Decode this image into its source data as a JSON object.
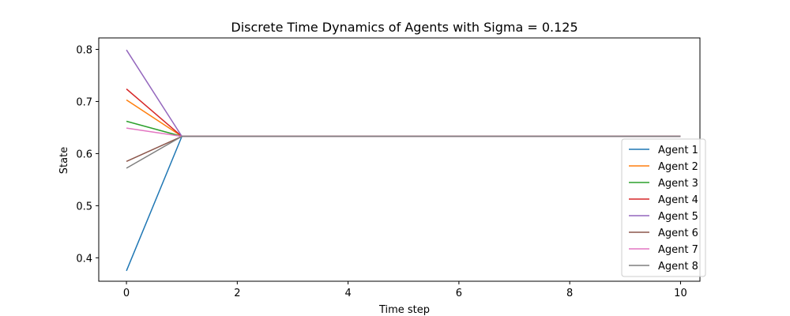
{
  "chart_data": {
    "type": "line",
    "title": "Discrete Time Dynamics of Agents with Sigma = 0.125",
    "xlabel": "Time step",
    "ylabel": "State",
    "xlim": [
      -0.5,
      10.35
    ],
    "ylim": [
      0.355,
      0.822
    ],
    "xticks": [
      0,
      2,
      4,
      6,
      8,
      10
    ],
    "yticks": [
      0.4,
      0.5,
      0.6,
      0.7,
      0.8
    ],
    "xtick_labels": [
      "0",
      "2",
      "4",
      "6",
      "8",
      "10"
    ],
    "ytick_labels": [
      "0.4",
      "0.5",
      "0.6",
      "0.7",
      "0.8"
    ],
    "grid": false,
    "legend_position": "lower right",
    "x": [
      0,
      1,
      2,
      3,
      4,
      5,
      6,
      7,
      8,
      9,
      10
    ],
    "series": [
      {
        "name": "Agent 1",
        "color": "#1f77b4",
        "values": [
          0.375,
          0.633,
          0.633,
          0.633,
          0.633,
          0.633,
          0.633,
          0.633,
          0.633,
          0.633,
          0.633
        ]
      },
      {
        "name": "Agent 2",
        "color": "#ff7f0e",
        "values": [
          0.703,
          0.633,
          0.633,
          0.633,
          0.633,
          0.633,
          0.633,
          0.633,
          0.633,
          0.633,
          0.633
        ]
      },
      {
        "name": "Agent 3",
        "color": "#2ca02c",
        "values": [
          0.662,
          0.633,
          0.633,
          0.633,
          0.633,
          0.633,
          0.633,
          0.633,
          0.633,
          0.633,
          0.633
        ]
      },
      {
        "name": "Agent 4",
        "color": "#d62728",
        "values": [
          0.724,
          0.633,
          0.633,
          0.633,
          0.633,
          0.633,
          0.633,
          0.633,
          0.633,
          0.633,
          0.633
        ]
      },
      {
        "name": "Agent 5",
        "color": "#9467bd",
        "values": [
          0.799,
          0.633,
          0.633,
          0.633,
          0.633,
          0.633,
          0.633,
          0.633,
          0.633,
          0.633,
          0.633
        ]
      },
      {
        "name": "Agent 6",
        "color": "#8c564b",
        "values": [
          0.585,
          0.633,
          0.633,
          0.633,
          0.633,
          0.633,
          0.633,
          0.633,
          0.633,
          0.633,
          0.633
        ]
      },
      {
        "name": "Agent 7",
        "color": "#e377c2",
        "values": [
          0.649,
          0.633,
          0.633,
          0.633,
          0.633,
          0.633,
          0.633,
          0.633,
          0.633,
          0.633,
          0.633
        ]
      },
      {
        "name": "Agent 8",
        "color": "#7f7f7f",
        "values": [
          0.572,
          0.633,
          0.633,
          0.633,
          0.633,
          0.633,
          0.633,
          0.633,
          0.633,
          0.633,
          0.633
        ]
      }
    ]
  }
}
